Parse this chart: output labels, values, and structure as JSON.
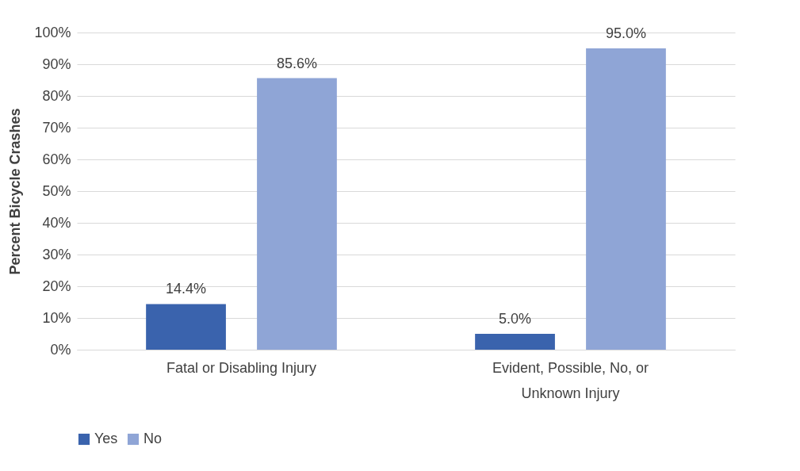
{
  "chart_data": {
    "type": "bar",
    "ylabel": "Percent Bicycle Crashes",
    "categories": [
      "Fatal or Disabling Injury",
      "Evident, Possible, No, or Unknown Injury"
    ],
    "series": [
      {
        "name": "Yes",
        "color": "#3a63ad",
        "values": [
          14.4,
          5.0
        ],
        "value_labels": [
          "14.4%",
          "5.0%"
        ]
      },
      {
        "name": "No",
        "color": "#8fa5d6",
        "values": [
          85.6,
          95.0
        ],
        "value_labels": [
          "85.6%",
          "95.0%"
        ]
      }
    ],
    "ylim": [
      0,
      100
    ],
    "yticks": [
      {
        "value": 0,
        "label": "0%"
      },
      {
        "value": 10,
        "label": "10%"
      },
      {
        "value": 20,
        "label": "20%"
      },
      {
        "value": 30,
        "label": "30%"
      },
      {
        "value": 40,
        "label": "40%"
      },
      {
        "value": 50,
        "label": "50%"
      },
      {
        "value": 60,
        "label": "60%"
      },
      {
        "value": 70,
        "label": "70%"
      },
      {
        "value": 80,
        "label": "80%"
      },
      {
        "value": 90,
        "label": "90%"
      },
      {
        "value": 100,
        "label": "100%"
      }
    ],
    "grid": "y",
    "legend": "bottom"
  }
}
